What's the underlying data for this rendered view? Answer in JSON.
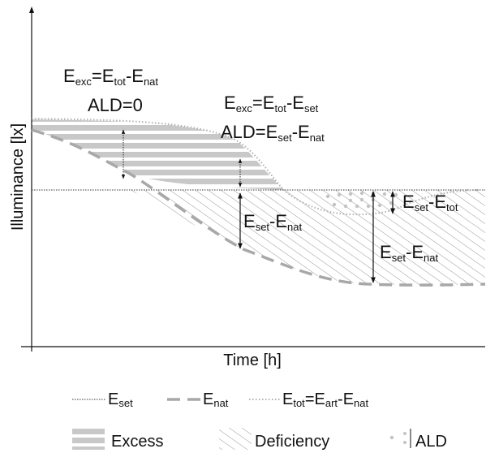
{
  "axes": {
    "x_label": "Time [h]",
    "y_label": "Illuminance [lx]"
  },
  "annotations": {
    "ann1": {
      "base": "E",
      "sub": "exc",
      "eq": "=",
      "b2": "E",
      "s2": "tot",
      "dash": "-",
      "b3": "E",
      "s3": "nat"
    },
    "ann1_ald": "ALD=0",
    "ann2": {
      "base": "E",
      "sub": "exc",
      "eq": "=",
      "b2": "E",
      "s2": "tot",
      "dash": "-",
      "b3": "E",
      "s3": "set"
    },
    "ann2_ald": {
      "prefix": "ALD=",
      "b2": "E",
      "s2": "set",
      "dash": "-",
      "b3": "E",
      "s3": "nat"
    },
    "ann3": {
      "b2": "E",
      "s2": "set",
      "dash": "-",
      "b3": "E",
      "s3": "nat"
    },
    "ann4": {
      "b2": "E",
      "s2": "set",
      "dash": "-",
      "b3": "E",
      "s3": "tot"
    },
    "ann5": {
      "b2": "E",
      "s2": "set",
      "dash": "-",
      "b3": "E",
      "s3": "nat"
    }
  },
  "legend": {
    "e_set": {
      "base": "E",
      "sub": "set"
    },
    "e_nat": {
      "base": "E",
      "sub": "nat"
    },
    "e_tot": {
      "b1": "E",
      "s1": "tot",
      "eq": "=",
      "b2": "E",
      "s2": "art",
      "dash": "-",
      "b3": "E",
      "s3": "nat"
    },
    "excess": "Excess",
    "deficiency": "Deficiency",
    "ald": "ALD"
  },
  "colors": {
    "excess_fill": "#c8c8c8",
    "hatch": "#8a8a8a",
    "curve_nat": "#a8a8a8",
    "curve_tot": "#b8b8b8",
    "set_line": "#333333"
  }
}
